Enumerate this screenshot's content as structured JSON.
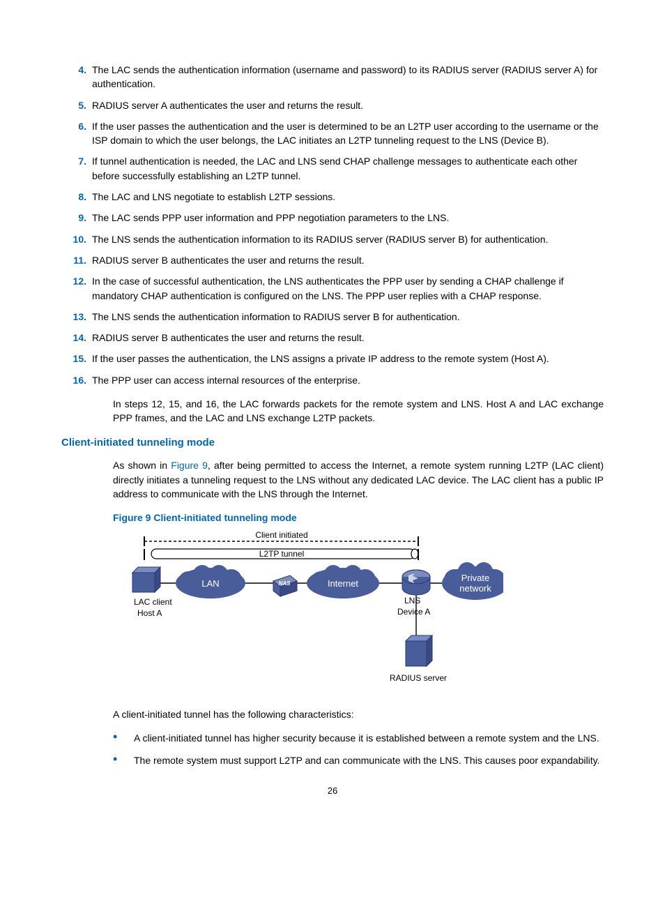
{
  "steps": [
    {
      "n": "4.",
      "t": "The LAC sends the authentication information (username and password) to its RADIUS server (RADIUS server A) for authentication."
    },
    {
      "n": "5.",
      "t": "RADIUS server A authenticates the user and returns the result."
    },
    {
      "n": "6.",
      "t": "If the user passes the authentication and the user is determined to be an L2TP user according to the username or the ISP domain to which the user belongs, the LAC initiates an L2TP tunneling request to the LNS (Device B)."
    },
    {
      "n": "7.",
      "t": "If tunnel authentication is needed, the LAC and LNS send CHAP challenge messages to authenticate each other before successfully establishing an L2TP tunnel."
    },
    {
      "n": "8.",
      "t": "The LAC and LNS negotiate to establish L2TP sessions."
    },
    {
      "n": "9.",
      "t": "The LAC sends PPP user information and PPP negotiation parameters to the LNS."
    },
    {
      "n": "10.",
      "t": "The LNS sends the authentication information to its RADIUS server (RADIUS server B) for authentication."
    },
    {
      "n": "11.",
      "t": "RADIUS server B authenticates the user and returns the result."
    },
    {
      "n": "12.",
      "t": "In the case of successful authentication, the LNS authenticates the PPP user by sending a CHAP challenge if mandatory CHAP authentication is configured on the LNS. The PPP user replies with a CHAP response."
    },
    {
      "n": "13.",
      "t": "The LNS sends the authentication information to RADIUS server B for authentication."
    },
    {
      "n": "14.",
      "t": "RADIUS server B authenticates the user and returns the result."
    },
    {
      "n": "15.",
      "t": "If the user passes the authentication, the LNS assigns a private IP address to the remote system (Host A)."
    },
    {
      "n": "16.",
      "t": "The PPP user can access internal resources of the enterprise."
    }
  ],
  "after_steps": "In steps 12, 15, and 16, the LAC forwards packets for the remote system and LNS. Host A and LAC exchange PPP frames, and the LAC and LNS exchange L2TP packets.",
  "heading": "Client-initiated tunneling mode",
  "body_pre": "As shown in ",
  "body_link": "Figure 9",
  "body_post": ", after being permitted to access the Internet, a remote system running L2TP (LAC client) directly initiates a tunneling request to the LNS without any dedicated LAC device. The LAC client has a public IP address to communicate with the LNS through the Internet.",
  "fig_caption": "Figure 9 Client-initiated tunneling mode",
  "intro2": "A client-initiated tunnel has the following characteristics:",
  "bullets": [
    "A client-initiated tunnel has higher security because it is established between a remote system and the LNS.",
    "The remote system must support L2TP and can communicate with the LNS. This causes poor expandability."
  ],
  "page_number": "26",
  "figure": {
    "type": "network",
    "bg": "#ffffff",
    "cloud_fill": "#4a5d9b",
    "cloud_text": "#ffffff",
    "box_fill": "#4a5d9b",
    "box_stroke": "#2a3a6b",
    "text_color": "#000000",
    "font_size": 12,
    "label_client_initiated": "Client initiated",
    "label_l2tp_tunnel": "L2TP tunnel",
    "cloud_lan": "LAN",
    "cloud_internet": "Internet",
    "cloud_private1": "Private",
    "cloud_private2": "network",
    "nas_label": "NAS",
    "lac_label1": "LAC client",
    "lac_label2": "Host A",
    "lns_label1": "LNS",
    "lns_label2": "Device A",
    "radius_label": "RADIUS server"
  }
}
